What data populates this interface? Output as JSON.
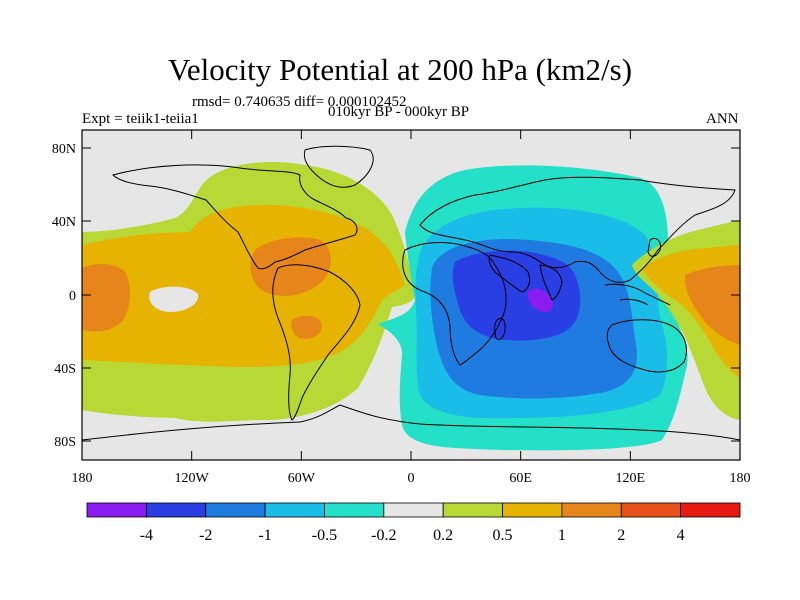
{
  "title": "Velocity Potential at 200 hPa (km2/s)",
  "stats_line": "rmsd= 0.740635 diff= 0.000102452",
  "expt_label": "Expt = teiik1-teiia1",
  "period_label": "010kyr BP - 000kyr BP",
  "season_label": "ANN",
  "map": {
    "lat_ticks": [
      "80N",
      "40N",
      "0",
      "40S",
      "80S"
    ],
    "lon_ticks": [
      "180",
      "120W",
      "60W",
      "0",
      "60E",
      "120E",
      "180"
    ],
    "background_color": "#e6e6e6"
  },
  "colorbar": {
    "colors": [
      "#8b1cf0",
      "#2a3fe3",
      "#1f7be0",
      "#19bde8",
      "#25e0c8",
      "#e6e6e6",
      "#b8d935",
      "#e6b400",
      "#e6861a",
      "#e6521a",
      "#e61a12"
    ],
    "labels": [
      "-4",
      "-2",
      "-1",
      "-0.5",
      "-0.2",
      "0.2",
      "0.5",
      "1",
      "2",
      "4"
    ]
  }
}
